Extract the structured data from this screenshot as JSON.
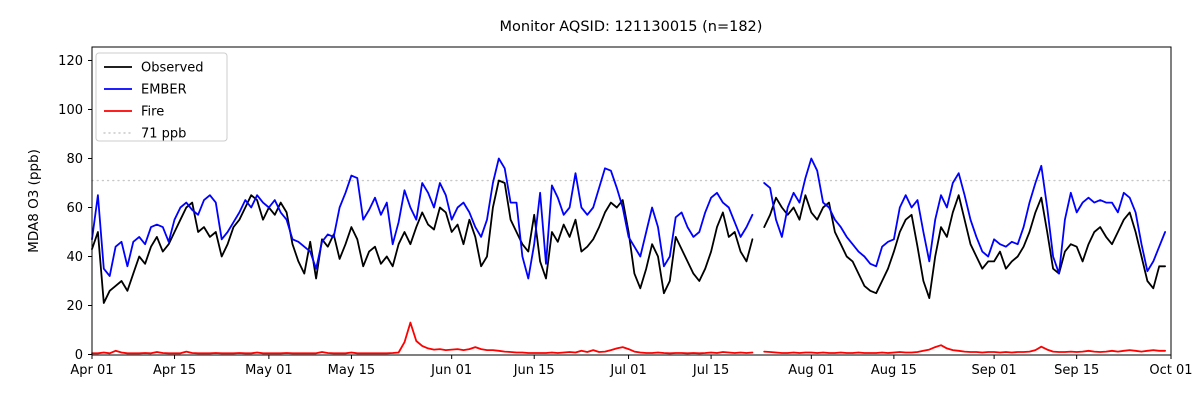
{
  "chart_data": {
    "type": "line",
    "title": "Monitor AQSID: 121130015 (n=182)",
    "xlabel": "",
    "ylabel": "MDA8 O3 (ppb)",
    "x_unit": "date (daily, Apr 01 - Sep 30)",
    "x_tick_labels": [
      "Apr 01",
      "Apr 15",
      "May 01",
      "May 15",
      "Jun 01",
      "Jun 15",
      "Jul 01",
      "Jul 15",
      "Aug 01",
      "Aug 15",
      "Sep 01",
      "Sep 15",
      "Oct 01"
    ],
    "x_tick_days": [
      0,
      14,
      30,
      44,
      61,
      75,
      91,
      105,
      122,
      136,
      153,
      167,
      183
    ],
    "xlim_days": [
      0,
      183
    ],
    "y_ticks": [
      0,
      20,
      40,
      60,
      80,
      100,
      120
    ],
    "ylim": [
      0,
      125.5
    ],
    "grid": false,
    "legend_position": "upper left",
    "missing_day_index": 113,
    "reference_line": {
      "label": "71 ppb",
      "value": 71,
      "color": "#c8c8c8",
      "style": "dotted"
    },
    "series": [
      {
        "name": "Observed",
        "color": "#000000",
        "values": [
          43,
          50,
          21,
          26,
          28,
          30,
          26,
          33,
          40,
          37,
          44,
          48,
          42,
          45,
          50,
          55,
          60,
          62,
          50,
          52,
          48,
          50,
          40,
          45,
          52,
          55,
          60,
          65,
          63,
          55,
          60,
          57,
          62,
          58,
          45,
          38,
          33,
          46,
          31,
          47,
          44,
          49,
          39,
          45,
          52,
          47,
          36,
          42,
          44,
          37,
          40,
          36,
          45,
          50,
          45,
          52,
          58,
          53,
          51,
          60,
          58,
          50,
          53,
          45,
          55,
          48,
          36,
          40,
          60,
          71,
          70,
          55,
          50,
          45,
          42,
          57,
          38,
          31,
          50,
          46,
          53,
          48,
          55,
          42,
          44,
          47,
          52,
          58,
          62,
          60,
          63,
          50,
          33,
          27,
          35,
          45,
          40,
          25,
          30,
          48,
          43,
          38,
          33,
          30,
          35,
          42,
          52,
          58,
          48,
          50,
          42,
          38,
          47,
          null,
          52,
          57,
          64,
          60,
          57,
          60,
          55,
          65,
          58,
          55,
          60,
          62,
          50,
          45,
          40,
          38,
          33,
          28,
          26,
          25,
          30,
          35,
          42,
          50,
          55,
          57,
          44,
          30,
          23,
          40,
          52,
          48,
          58,
          65,
          55,
          45,
          40,
          35,
          38,
          38,
          42,
          35,
          38,
          40,
          44,
          50,
          58,
          64,
          50,
          35,
          33,
          42,
          45,
          44,
          38,
          45,
          50,
          52,
          48,
          45,
          50,
          55,
          58,
          50,
          40,
          30,
          27,
          36,
          36
        ]
      },
      {
        "name": "EMBER",
        "color": "#0000ff",
        "values": [
          47,
          65,
          35,
          32,
          44,
          46,
          36,
          46,
          48,
          45,
          52,
          53,
          52,
          46,
          55,
          60,
          62,
          59,
          57,
          63,
          65,
          62,
          47,
          50,
          54,
          58,
          63,
          60,
          65,
          62,
          60,
          63,
          58,
          55,
          47,
          46,
          44,
          42,
          35,
          46,
          49,
          48,
          60,
          66,
          73,
          72,
          55,
          59,
          64,
          57,
          62,
          45,
          54,
          67,
          60,
          55,
          70,
          66,
          60,
          70,
          65,
          55,
          60,
          62,
          58,
          52,
          48,
          55,
          70,
          80,
          76,
          62,
          62,
          40,
          31,
          45,
          66,
          37,
          69,
          64,
          57,
          60,
          74,
          60,
          57,
          60,
          68,
          76,
          75,
          68,
          60,
          48,
          44,
          40,
          50,
          60,
          52,
          36,
          40,
          56,
          58,
          52,
          48,
          50,
          58,
          64,
          66,
          62,
          60,
          54,
          48,
          52,
          57,
          null,
          70,
          68,
          55,
          48,
          60,
          66,
          62,
          72,
          80,
          75,
          62,
          60,
          55,
          52,
          48,
          45,
          42,
          40,
          37,
          36,
          44,
          46,
          47,
          60,
          65,
          60,
          63,
          50,
          38,
          55,
          65,
          60,
          70,
          74,
          65,
          55,
          48,
          42,
          40,
          47,
          45,
          44,
          46,
          45,
          52,
          62,
          70,
          77,
          60,
          40,
          33,
          55,
          66,
          58,
          62,
          64,
          62,
          63,
          62,
          62,
          58,
          66,
          64,
          58,
          45,
          34,
          38,
          44,
          50
        ]
      },
      {
        "name": "Fire",
        "color": "#ff0000",
        "values": [
          0.5,
          0.5,
          0.8,
          0.5,
          1.5,
          0.8,
          0.5,
          0.5,
          0.5,
          0.6,
          0.5,
          1.0,
          0.6,
          0.5,
          0.5,
          0.5,
          1.2,
          0.6,
          0.5,
          0.5,
          0.5,
          0.6,
          0.5,
          0.5,
          0.5,
          0.6,
          0.5,
          0.5,
          0.8,
          0.5,
          0.5,
          0.5,
          0.5,
          0.6,
          0.5,
          0.5,
          0.5,
          0.5,
          0.5,
          1.0,
          0.6,
          0.5,
          0.5,
          0.5,
          0.8,
          0.5,
          0.5,
          0.5,
          0.5,
          0.5,
          0.5,
          0.6,
          0.8,
          5.0,
          13.0,
          5.5,
          3.5,
          2.5,
          2.0,
          2.2,
          1.8,
          2.0,
          2.2,
          1.8,
          2.2,
          3.0,
          2.2,
          1.8,
          1.8,
          1.5,
          1.2,
          1.0,
          0.8,
          0.8,
          0.6,
          0.6,
          0.6,
          0.6,
          0.8,
          0.6,
          0.8,
          1.0,
          0.8,
          1.5,
          1.0,
          1.8,
          1.0,
          1.2,
          1.8,
          2.5,
          3.0,
          2.2,
          1.2,
          0.8,
          0.6,
          0.6,
          0.8,
          0.6,
          0.5,
          0.6,
          0.6,
          0.5,
          0.6,
          0.5,
          0.6,
          0.8,
          0.6,
          1.0,
          0.8,
          0.6,
          0.8,
          0.6,
          0.8,
          null,
          1.2,
          1.0,
          0.8,
          0.6,
          0.6,
          0.8,
          0.6,
          0.8,
          0.8,
          0.6,
          0.8,
          0.6,
          0.6,
          0.8,
          0.6,
          0.6,
          0.8,
          0.6,
          0.6,
          0.6,
          0.8,
          0.6,
          0.8,
          1.0,
          0.8,
          0.8,
          1.0,
          1.5,
          2.0,
          3.0,
          3.8,
          2.5,
          1.8,
          1.5,
          1.2,
          1.0,
          1.0,
          0.8,
          1.0,
          1.0,
          0.8,
          1.0,
          0.8,
          1.0,
          1.0,
          1.2,
          1.8,
          3.2,
          2.0,
          1.2,
          1.0,
          1.0,
          1.2,
          1.0,
          1.2,
          1.5,
          1.2,
          1.0,
          1.2,
          1.5,
          1.2,
          1.5,
          1.8,
          1.5,
          1.2,
          1.5,
          1.8,
          1.5,
          1.5
        ]
      }
    ]
  },
  "legend": {
    "items": [
      {
        "label": "Observed",
        "color": "#000000",
        "dash": "solid"
      },
      {
        "label": "EMBER",
        "color": "#0000ff",
        "dash": "solid"
      },
      {
        "label": "Fire",
        "color": "#ff0000",
        "dash": "solid"
      },
      {
        "label": "71 ppb",
        "color": "#c8c8c8",
        "dash": "dotted"
      }
    ]
  }
}
